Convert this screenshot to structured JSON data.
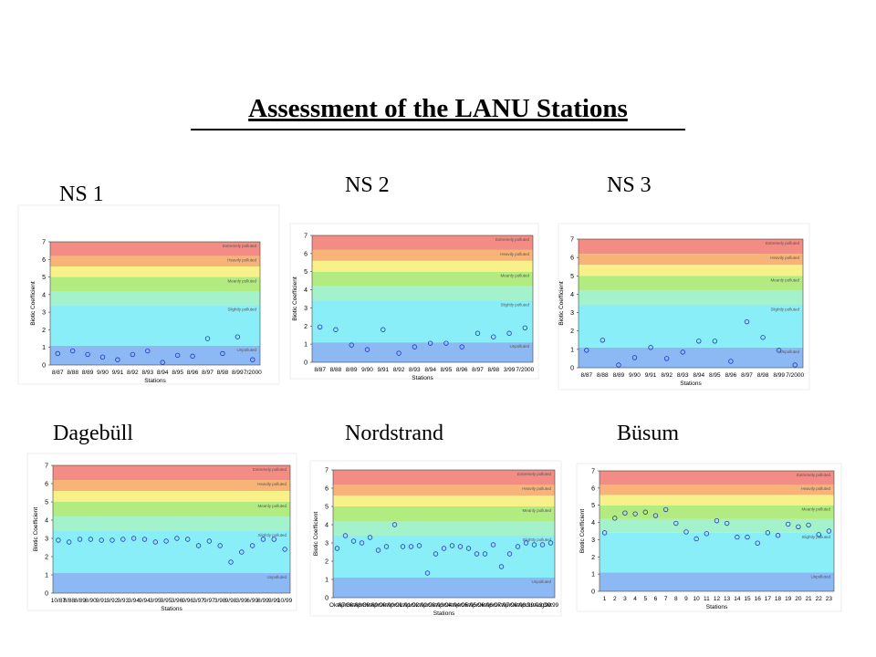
{
  "title": "Assessment of the LANU Stations",
  "bands": {
    "from": [
      0,
      1.1,
      3.4,
      4.2,
      5.0,
      5.6,
      6.2
    ],
    "to": [
      1.1,
      3.4,
      4.2,
      5.0,
      5.6,
      6.2,
      7
    ],
    "colors": [
      "#8cb8f4",
      "#8aeef8",
      "#a4f2cc",
      "#b2ec80",
      "#f8f088",
      "#f8b478",
      "#f28c84"
    ],
    "labels": [
      "Unpolluted",
      "Slightly polluted",
      null,
      "Meanly polluted",
      null,
      "Heavily polluted",
      "Extremely polluted"
    ]
  },
  "chart_data": [
    {
      "type": "scatter",
      "title": "NS 1",
      "xlabel": "Stations",
      "ylabel": "Biotic Coefficient",
      "color": "#2233bb",
      "categories": [
        "8/87",
        "8/88",
        "8/89",
        "9/90",
        "9/91",
        "8/92",
        "8/93",
        "8/94",
        "8/95",
        "8/96",
        "8/97",
        "8/98",
        "8/99",
        "7/2000"
      ],
      "values": [
        0.65,
        0.8,
        0.6,
        0.45,
        0.3,
        0.6,
        0.8,
        0.15,
        0.55,
        0.5,
        1.5,
        0.65,
        1.6,
        0.3
      ],
      "ylim": [
        0,
        7
      ],
      "yticks": [
        0,
        1,
        2,
        3,
        4,
        5,
        6,
        7
      ]
    },
    {
      "type": "scatter",
      "title": "NS 2",
      "xlabel": "Stations",
      "ylabel": "Biotic Coefficient",
      "color": "#2233bb",
      "categories": [
        "8/87",
        "8/88",
        "8/89",
        "9/90",
        "9/91",
        "8/92",
        "8/93",
        "8/94",
        "8/95",
        "8/96",
        "8/97",
        "8/98",
        "3/99",
        "7/2000"
      ],
      "values": [
        1.95,
        1.8,
        0.95,
        0.7,
        1.8,
        0.5,
        0.85,
        1.05,
        1.05,
        0.85,
        1.6,
        1.4,
        1.6,
        1.9
      ],
      "ylim": [
        0,
        7
      ],
      "yticks": [
        0,
        1,
        2,
        3,
        4,
        5,
        6,
        7
      ]
    },
    {
      "type": "scatter",
      "title": "NS 3",
      "xlabel": "Stations",
      "ylabel": "Biotic Coefficient",
      "color": "#2233bb",
      "categories": [
        "8/87",
        "8/88",
        "8/89",
        "9/90",
        "9/91",
        "8/92",
        "8/93",
        "8/94",
        "8/95",
        "8/96",
        "8/97",
        "8/98",
        "8/99",
        "7/2000"
      ],
      "values": [
        0.95,
        1.5,
        0.15,
        0.55,
        1.1,
        0.5,
        0.85,
        1.45,
        1.45,
        0.35,
        2.5,
        1.65,
        0.95,
        0.15
      ],
      "ylim": [
        0,
        7
      ],
      "yticks": [
        0,
        1,
        2,
        3,
        4,
        5,
        6,
        7
      ]
    },
    {
      "type": "scatter",
      "title": "Dagebüll",
      "xlabel": "Stations",
      "ylabel": "Biotic Coefficient",
      "color": "#2233bb",
      "categories": [
        "10/87",
        "8/88",
        "8/89",
        "8/90",
        "9/91",
        "9/92",
        "9/93",
        "3/94",
        "9/94",
        "3/95",
        "9/95",
        "3/96",
        "9/96",
        "3/97",
        "9/97",
        "3/98",
        "9/98",
        "3/99",
        "6/99",
        "8/99",
        "9/99",
        "10/99"
      ],
      "values": [
        2.9,
        2.8,
        2.95,
        2.95,
        2.9,
        2.9,
        2.95,
        3.0,
        2.95,
        2.8,
        2.85,
        3.0,
        2.95,
        2.6,
        2.85,
        2.6,
        1.7,
        2.25,
        2.6,
        2.95,
        2.95,
        2.4
      ],
      "ylim": [
        0,
        7
      ],
      "yticks": [
        0,
        1,
        2,
        3,
        4,
        5,
        6,
        7
      ]
    },
    {
      "type": "scatter",
      "title": "Nordstrand",
      "xlabel": "Stations",
      "ylabel": "Biotic Coefficient",
      "color": "#2233bb",
      "categories": [
        "Okt87",
        "Apr88",
        "Okt88",
        "Apr89",
        "Okt89",
        "Apr90",
        "Okt90",
        "Apr91",
        "Okt91",
        "Apr92",
        "Okt92",
        "Apr93",
        "Okt93",
        "Apr94",
        "Okt94",
        "Apr95",
        "Okt95",
        "Apr96",
        "Okt96",
        "Apr97",
        "Okt97",
        "Apr98",
        "Okt98",
        "Apr99",
        "Jun99",
        "Aug99",
        "Okt99"
      ],
      "values": [
        2.7,
        3.4,
        3.1,
        3.0,
        3.3,
        2.6,
        2.8,
        4.0,
        2.8,
        2.8,
        2.85,
        1.35,
        2.4,
        2.7,
        2.85,
        2.8,
        2.7,
        2.4,
        2.4,
        2.9,
        1.7,
        2.4,
        2.8,
        3.0,
        2.9,
        2.9,
        3.0
      ],
      "ylim": [
        0,
        7
      ],
      "yticks": [
        0,
        1,
        2,
        3,
        4,
        5,
        6,
        7
      ]
    },
    {
      "type": "scatter",
      "title": "Büsum",
      "xlabel": "Stations",
      "ylabel": "Biotic Coefficient",
      "color": "#2233bb",
      "categories": [
        "1",
        "2",
        "3",
        "4",
        "5",
        "6",
        "7",
        "8",
        "9",
        "10",
        "11",
        "12",
        "13",
        "14",
        "15",
        "16",
        "17",
        "18",
        "19",
        "20",
        "21",
        "22",
        "23"
      ],
      "values": [
        3.4,
        4.25,
        4.55,
        4.5,
        4.6,
        4.4,
        4.75,
        3.95,
        3.45,
        3.05,
        3.35,
        4.1,
        3.95,
        3.15,
        3.15,
        2.8,
        3.4,
        3.25,
        3.9,
        3.75,
        3.85,
        3.3,
        3.5
      ],
      "ylim": [
        0,
        7
      ],
      "yticks": [
        0,
        1,
        2,
        3,
        4,
        5,
        6,
        7
      ]
    }
  ]
}
